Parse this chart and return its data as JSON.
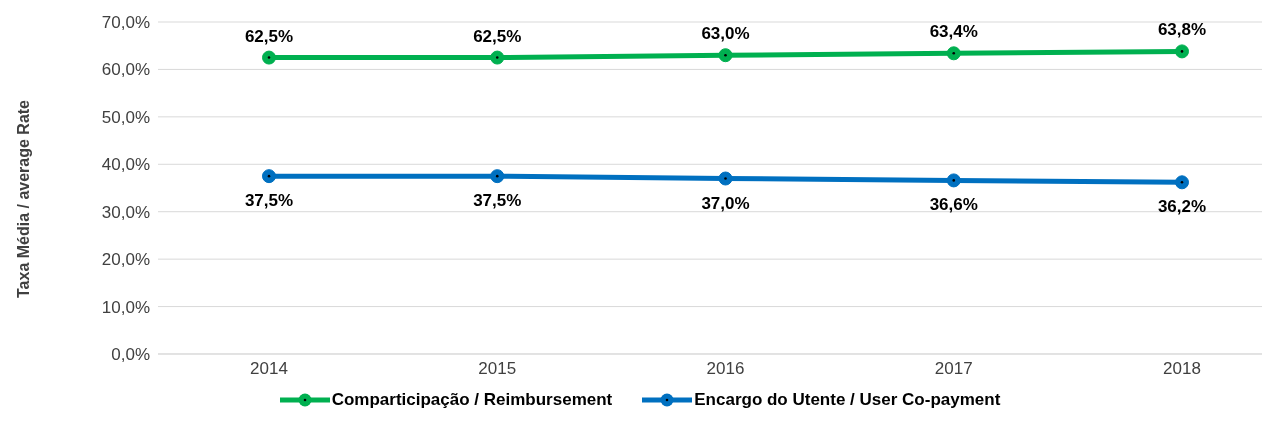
{
  "chart_data": {
    "type": "line",
    "ylabel": "Taxa Média / average Rate",
    "categories": [
      "2014",
      "2015",
      "2016",
      "2017",
      "2018"
    ],
    "series": [
      {
        "name": "Comparticipação / Reimbursement",
        "color": "#00b050",
        "values": [
          62.5,
          62.5,
          63.0,
          63.4,
          63.8
        ],
        "value_labels": [
          "62,5%",
          "62,5%",
          "63,0%",
          "63,4%",
          "63,8%"
        ]
      },
      {
        "name": "Encargo do Utente / User Co-payment",
        "color": "#0070c0",
        "values": [
          37.5,
          37.5,
          37.0,
          36.6,
          36.2
        ],
        "value_labels": [
          "37,5%",
          "37,5%",
          "37,0%",
          "36,6%",
          "36,2%"
        ]
      }
    ],
    "ylim": [
      0,
      70
    ],
    "yticks": [
      {
        "value": 0,
        "label": "0,0%"
      },
      {
        "value": 10,
        "label": "10,0%"
      },
      {
        "value": 20,
        "label": "20,0%"
      },
      {
        "value": 30,
        "label": "30,0%"
      },
      {
        "value": 40,
        "label": "40,0%"
      },
      {
        "value": 50,
        "label": "50,0%"
      },
      {
        "value": 60,
        "label": "60,0%"
      },
      {
        "value": 70,
        "label": "70,0%"
      }
    ],
    "grid": "y",
    "legend": "bottom",
    "marker": "circle",
    "line_style": "solid"
  }
}
